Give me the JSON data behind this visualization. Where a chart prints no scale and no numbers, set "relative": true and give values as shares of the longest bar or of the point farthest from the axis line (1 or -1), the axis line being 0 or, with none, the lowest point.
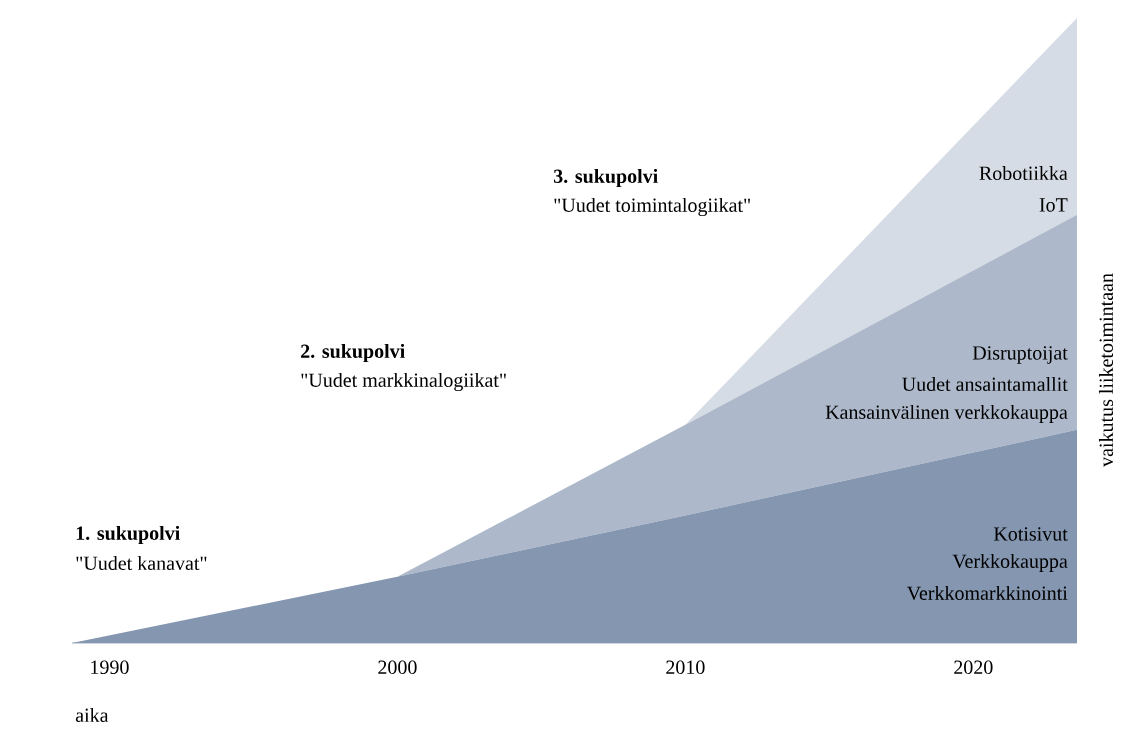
{
  "chart_data": {
    "type": "area",
    "stacked": true,
    "relative": true,
    "xlabel": "aika",
    "ylabel": "vaikutus liiketoimintaan",
    "x": [
      1988.7,
      2000,
      2010,
      2023.6
    ],
    "xlim": [
      1988.7,
      2023.6
    ],
    "xticks": [
      1990,
      2000,
      2010,
      2020
    ],
    "series": [
      {
        "color": "#8496b0",
        "values": [
          0,
          0.106,
          0.204,
          0.341
        ]
      },
      {
        "color": "#adb9ca",
        "values": [
          0,
          0,
          0.145,
          0.344
        ]
      },
      {
        "color": "#d6dce5",
        "values": [
          0,
          0,
          0,
          0.315
        ]
      }
    ],
    "annotations": [
      "1. sukupolvi",
      "2. sukupolvi",
      "3. sukupolvi",
      "\"Uudet kanavat\"",
      "\"Uudet markkinalogiikat\"",
      "\"Uudet toimintalogiikat\"",
      "Robotiikka",
      "IoT",
      "Disruptoijat",
      "Uudet ansaintamallit",
      "Kansainvälinen verkkokauppa",
      "Kotisivut",
      "Verkkokauppa",
      "Verkkomarkkinointi"
    ]
  }
}
